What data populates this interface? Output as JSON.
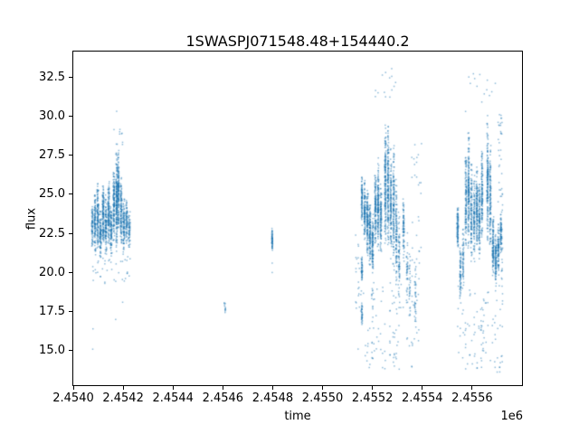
{
  "figure": {
    "background_color": "#ffffff"
  },
  "chart_data": {
    "type": "scatter",
    "title": "1SWASPJ071548.48+154440.2",
    "xlabel": "time",
    "ylabel": "flux",
    "x_offset_label": "1e6",
    "grid": false,
    "legend": null,
    "marker_color": "#1f77b4",
    "marker_alpha": 0.5,
    "marker_size_px": 1.5,
    "seed": 7,
    "xlim": [
      2454000,
      2455800
    ],
    "ylim": [
      12.8,
      34.12
    ],
    "xticks": [
      2454000,
      2454200,
      2454400,
      2454600,
      2454800,
      2455000,
      2455200,
      2455400,
      2455600
    ],
    "xtick_labels": [
      "2.4540",
      "2.4542",
      "2.4544",
      "2.4546",
      "2.4548",
      "2.4550",
      "2.4552",
      "2.4554",
      "2.4556"
    ],
    "yticks": [
      15.0,
      17.5,
      20.0,
      22.5,
      25.0,
      27.5,
      30.0,
      32.5
    ],
    "ytick_labels": [
      "15.0",
      "17.5",
      "20.0",
      "22.5",
      "25.0",
      "27.5",
      "30.0",
      "32.5"
    ],
    "night_stripes": [
      [
        2454076,
        5,
        21.5,
        24.3,
        70
      ],
      [
        2454087,
        6,
        21.0,
        25.2,
        110
      ],
      [
        2454098,
        6,
        21.3,
        25.8,
        130
      ],
      [
        2454109,
        6,
        20.8,
        24.2,
        100
      ],
      [
        2454120,
        6,
        21.5,
        26.3,
        140
      ],
      [
        2454131,
        6,
        21.0,
        25.0,
        110
      ],
      [
        2454142,
        6,
        21.8,
        26.0,
        130
      ],
      [
        2454152,
        6,
        21.0,
        24.5,
        100
      ],
      [
        2454163,
        6,
        22.0,
        26.8,
        140
      ],
      [
        2454174,
        5,
        21.0,
        28.0,
        190
      ],
      [
        2454181,
        5,
        22.5,
        28.0,
        160
      ],
      [
        2454192,
        6,
        21.5,
        26.5,
        120
      ],
      [
        2454203,
        6,
        21.0,
        25.0,
        100
      ],
      [
        2454214,
        6,
        21.8,
        24.8,
        80
      ],
      [
        2454225,
        7,
        21.3,
        24.0,
        60
      ],
      [
        2454608,
        7,
        17.2,
        18.4,
        12
      ],
      [
        2454798,
        4,
        21.2,
        22.9,
        60
      ],
      [
        2455158,
        4,
        22.9,
        26.3,
        90
      ],
      [
        2455158,
        4,
        19.4,
        21.2,
        50
      ],
      [
        2455158,
        4,
        16.5,
        18.3,
        35
      ],
      [
        2455169,
        5,
        21.8,
        26.0,
        120
      ],
      [
        2455180,
        5,
        21.0,
        25.5,
        130
      ],
      [
        2455190,
        5,
        20.3,
        24.6,
        120
      ],
      [
        2455201,
        5,
        19.8,
        23.8,
        110
      ],
      [
        2455212,
        5,
        21.5,
        26.8,
        130
      ],
      [
        2455223,
        5,
        21.3,
        27.4,
        150
      ],
      [
        2455234,
        5,
        20.8,
        26.0,
        110
      ],
      [
        2455252,
        5,
        21.5,
        29.5,
        180
      ],
      [
        2455263,
        5,
        21.0,
        30.0,
        170
      ],
      [
        2455274,
        5,
        20.5,
        28.0,
        130
      ],
      [
        2455285,
        5,
        20.0,
        28.7,
        140
      ],
      [
        2455296,
        5,
        19.0,
        26.5,
        110
      ],
      [
        2455307,
        5,
        18.0,
        24.0,
        70
      ],
      [
        2455325,
        5,
        20.5,
        25.2,
        80
      ],
      [
        2455339,
        5,
        17.5,
        23.0,
        40
      ],
      [
        2455350,
        5,
        17.0,
        22.0,
        30
      ],
      [
        2455372,
        5,
        16.5,
        20.7,
        35
      ],
      [
        2455542,
        5,
        21.5,
        24.5,
        100
      ],
      [
        2455553,
        5,
        17.8,
        21.8,
        70
      ],
      [
        2455564,
        5,
        19.0,
        23.0,
        60
      ],
      [
        2455575,
        5,
        21.5,
        28.0,
        130
      ],
      [
        2455586,
        5,
        21.0,
        29.3,
        170
      ],
      [
        2455597,
        5,
        20.5,
        27.5,
        120
      ],
      [
        2455608,
        5,
        20.5,
        26.5,
        100
      ],
      [
        2455619,
        5,
        21.3,
        27.0,
        130
      ],
      [
        2455629,
        5,
        20.8,
        26.0,
        110
      ],
      [
        2455640,
        5,
        21.8,
        28.5,
        130
      ],
      [
        2455662,
        5,
        21.5,
        30.3,
        170
      ],
      [
        2455673,
        5,
        21.0,
        28.8,
        130
      ],
      [
        2455684,
        5,
        19.5,
        23.8,
        120
      ],
      [
        2455695,
        5,
        19.0,
        22.5,
        100
      ],
      [
        2455705,
        5,
        19.8,
        23.2,
        90
      ],
      [
        2455716,
        5,
        21.0,
        24.2,
        80
      ]
    ],
    "sparse_bands": [
      [
        2454076,
        2454230,
        19.3,
        21.3,
        40
      ],
      [
        2454160,
        2454200,
        28.0,
        29.3,
        10
      ],
      [
        2455130,
        2455160,
        17.0,
        22.5,
        25
      ],
      [
        2455140,
        2455390,
        13.8,
        19.5,
        85
      ],
      [
        2455196,
        2455206,
        14.5,
        19.0,
        16
      ],
      [
        2455210,
        2455300,
        31.0,
        33.1,
        14
      ],
      [
        2455280,
        2455302,
        14.0,
        18.5,
        16
      ],
      [
        2455355,
        2455400,
        19.5,
        28.5,
        30
      ],
      [
        2455540,
        2455724,
        13.6,
        19.2,
        90
      ],
      [
        2455570,
        2455700,
        29.6,
        33.0,
        14
      ],
      [
        2455630,
        2455650,
        14.2,
        17.5,
        12
      ],
      [
        2455702,
        2455722,
        24.5,
        30.3,
        30
      ],
      [
        2455716,
        2455724,
        18.5,
        25.5,
        20
      ]
    ],
    "isolated_points": [
      [
        2454174,
        30.3
      ],
      [
        2454079,
        16.4
      ],
      [
        2454078,
        15.1
      ],
      [
        2454170,
        17.0
      ],
      [
        2454198,
        18.1
      ],
      [
        2454798,
        20.6
      ],
      [
        2454798,
        20.0
      ]
    ]
  }
}
